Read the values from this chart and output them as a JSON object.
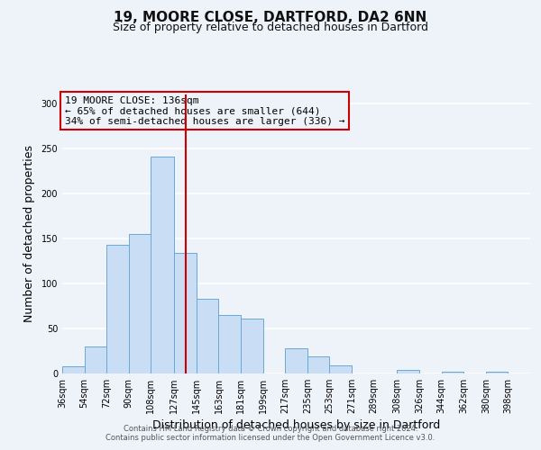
{
  "title": "19, MOORE CLOSE, DARTFORD, DA2 6NN",
  "subtitle": "Size of property relative to detached houses in Dartford",
  "xlabel": "Distribution of detached houses by size in Dartford",
  "ylabel": "Number of detached properties",
  "bar_left_edges": [
    36,
    54,
    72,
    90,
    108,
    127,
    145,
    163,
    181,
    199,
    217,
    235,
    253,
    271,
    289,
    308,
    326,
    344,
    362,
    380
  ],
  "bar_widths": [
    18,
    18,
    18,
    18,
    19,
    18,
    18,
    18,
    18,
    18,
    18,
    18,
    18,
    18,
    19,
    18,
    18,
    18,
    18,
    18
  ],
  "bar_heights": [
    8,
    30,
    143,
    155,
    241,
    134,
    83,
    65,
    61,
    0,
    28,
    19,
    9,
    0,
    0,
    4,
    0,
    2,
    0,
    2
  ],
  "xtick_labels": [
    "36sqm",
    "54sqm",
    "72sqm",
    "90sqm",
    "108sqm",
    "127sqm",
    "145sqm",
    "163sqm",
    "181sqm",
    "199sqm",
    "217sqm",
    "235sqm",
    "253sqm",
    "271sqm",
    "289sqm",
    "308sqm",
    "326sqm",
    "344sqm",
    "362sqm",
    "380sqm",
    "398sqm"
  ],
  "xtick_positions": [
    36,
    54,
    72,
    90,
    108,
    127,
    145,
    163,
    181,
    199,
    217,
    235,
    253,
    271,
    289,
    308,
    326,
    344,
    362,
    380,
    398
  ],
  "ylim": [
    0,
    310
  ],
  "yticks": [
    0,
    50,
    100,
    150,
    200,
    250,
    300
  ],
  "xlim": [
    36,
    416
  ],
  "bar_color": "#c9ddf5",
  "bar_edge_color": "#6aaad4",
  "vline_x": 136,
  "vline_color": "#cc0000",
  "annotation_line1": "19 MOORE CLOSE: 136sqm",
  "annotation_line2": "← 65% of detached houses are smaller (644)",
  "annotation_line3": "34% of semi-detached houses are larger (336) →",
  "footer1": "Contains HM Land Registry data © Crown copyright and database right 2024.",
  "footer2": "Contains public sector information licensed under the Open Government Licence v3.0.",
  "background_color": "#eef2f9",
  "grid_color": "#ffffff",
  "title_fontsize": 11,
  "subtitle_fontsize": 9,
  "axis_label_fontsize": 9,
  "tick_fontsize": 7,
  "annotation_fontsize": 8,
  "footer_fontsize": 6
}
